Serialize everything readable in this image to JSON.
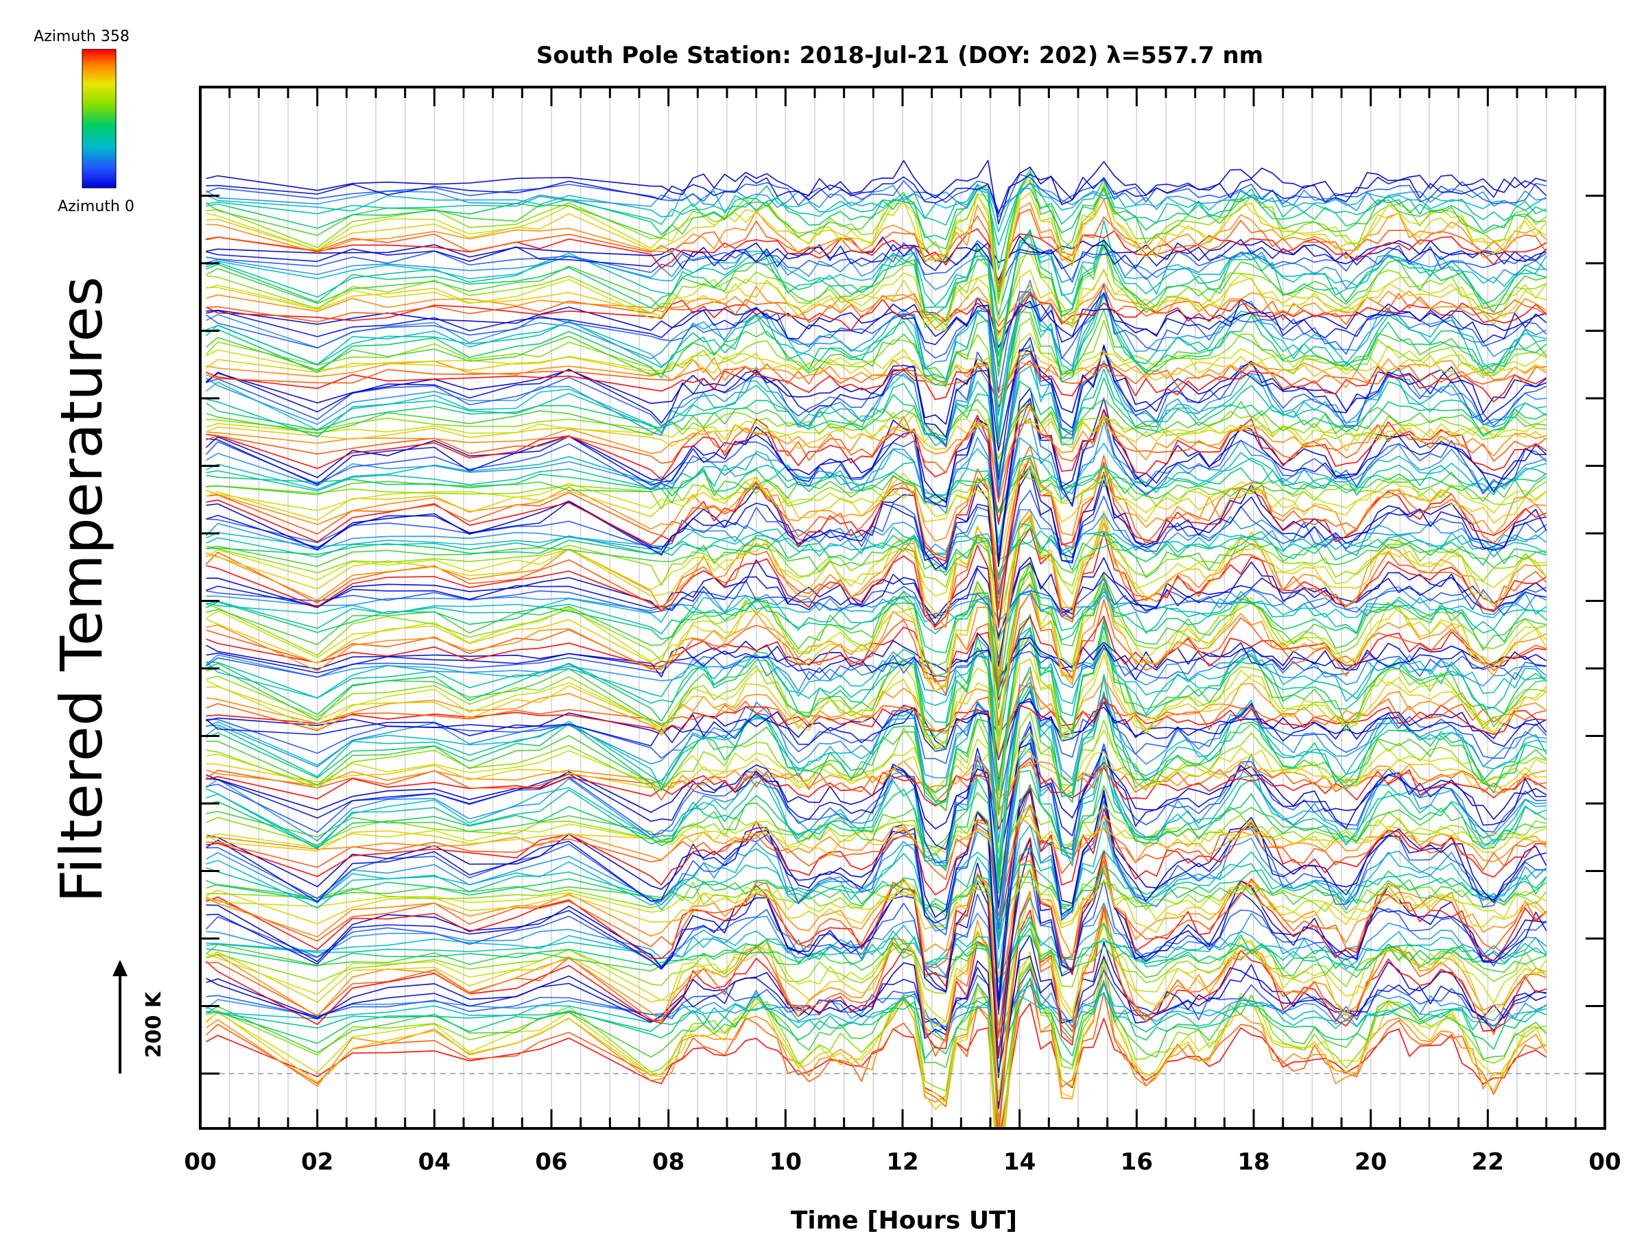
{
  "chart_data": {
    "type": "line",
    "title": "South Pole Station: 2018-Jul-21 (DOY: 202) λ=557.7 nm",
    "xlabel": "Time [Hours UT]",
    "ylabel": "Filtered Temperatures",
    "xlim": [
      0,
      24
    ],
    "x_ticks": [
      "00",
      "02",
      "04",
      "06",
      "08",
      "10",
      "12",
      "14",
      "16",
      "18",
      "20",
      "22",
      "00"
    ],
    "grid": true,
    "colorbar": {
      "top_label": "Azimuth  358",
      "bottom_label": "Azimuth  0",
      "colormap": [
        "#ff0000",
        "#ff8800",
        "#e8e800",
        "#88dd00",
        "#00cc66",
        "#00bbcc",
        "#2255ff",
        "#0000dd"
      ]
    },
    "scale_bar": {
      "label": "200 K",
      "value_K": 200
    },
    "num_traces": 181,
    "num_groups": 13,
    "notes_visible": "stacked traces offset vertically, color-coded by azimuth"
  }
}
